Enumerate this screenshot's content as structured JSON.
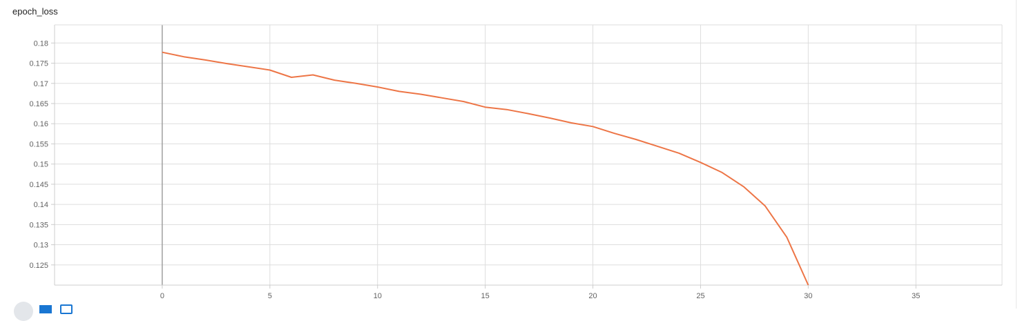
{
  "card": {
    "title": "epoch_loss"
  },
  "colors": {
    "series": "#ed7546",
    "grid": "#dddddd",
    "zero_line": "#9e9e9e",
    "axis": "#cccccc",
    "tick_text": "#616161"
  },
  "icons": [
    "expand-icon",
    "data-toggle-icon",
    "fit-domain-icon"
  ],
  "chart_data": {
    "type": "line",
    "title": "epoch_loss",
    "xlabel": "",
    "ylabel": "",
    "xlim": [
      -5,
      39
    ],
    "ylim": [
      0.12,
      0.1845
    ],
    "grid": true,
    "xticks": [
      0,
      5,
      10,
      15,
      20,
      25,
      30,
      35
    ],
    "yticks": [
      0.125,
      0.13,
      0.135,
      0.14,
      0.145,
      0.15,
      0.155,
      0.16,
      0.165,
      0.17,
      0.175,
      0.18
    ],
    "series": [
      {
        "x": [
          0,
          1,
          2,
          3,
          4,
          5,
          6,
          7,
          8,
          9,
          10,
          11,
          12,
          13,
          14,
          15,
          16,
          17,
          18,
          19,
          20,
          21,
          22,
          23,
          24,
          25,
          26,
          27,
          28,
          29,
          30
        ],
        "values": [
          0.1777,
          0.1766,
          0.1758,
          0.1749,
          0.1741,
          0.1733,
          0.1715,
          0.1721,
          0.1708,
          0.17,
          0.1691,
          0.168,
          0.1673,
          0.1664,
          0.1655,
          0.1641,
          0.1635,
          0.1625,
          0.1614,
          0.1602,
          0.1593,
          0.1576,
          0.1561,
          0.1544,
          0.1527,
          0.1504,
          0.1479,
          0.1444,
          0.1396,
          0.1319,
          0.12
        ]
      }
    ]
  }
}
